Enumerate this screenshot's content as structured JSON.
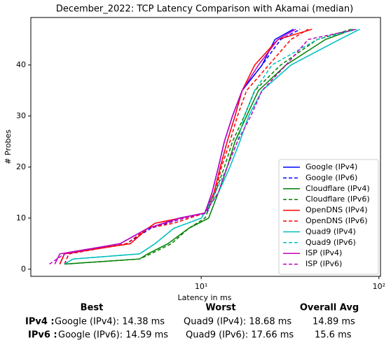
{
  "chart_data": {
    "type": "line",
    "title": "December_2022: TCP Latency Comparison with Akamai (median)",
    "xlabel": "Latency in ms",
    "ylabel": "# Probes",
    "xscale": "log",
    "xlim": [
      1.1,
      102
    ],
    "xticks": [
      {
        "value": 10,
        "label": "10¹"
      },
      {
        "value": 100,
        "label": "10²"
      }
    ],
    "ylim": [
      -1.4,
      49.3
    ],
    "yticks": [
      0,
      10,
      20,
      30,
      40
    ],
    "legend": "lower right",
    "series": [
      {
        "name": "Google (IPv4)",
        "color": "#0000ff",
        "dashed": false,
        "x": [
          1.6,
          1.7,
          3.5,
          5,
          7.5,
          10.5,
          11.5,
          12.5,
          13.5,
          15,
          17,
          22,
          26,
          33
        ],
        "values": [
          1,
          3,
          5,
          8,
          10,
          11,
          15,
          20,
          25,
          30,
          35,
          40,
          45,
          47
        ]
      },
      {
        "name": "Google (IPv6)",
        "color": "#0000ff",
        "dashed": true,
        "x": [
          1.7,
          1.8,
          3.8,
          5.2,
          8,
          10.8,
          11.8,
          12.8,
          14,
          15.5,
          17,
          22,
          28,
          36
        ],
        "values": [
          1,
          3,
          5,
          8,
          10,
          11,
          15,
          20,
          25,
          30,
          35,
          40,
          45,
          47
        ]
      },
      {
        "name": "Cloudflare (IPv4)",
        "color": "#008000",
        "dashed": false,
        "x": [
          1.7,
          4.5,
          5,
          6.5,
          8.5,
          11,
          12.5,
          14,
          15.5,
          18,
          21,
          30,
          50,
          72
        ],
        "values": [
          1,
          2,
          3,
          5,
          8,
          10,
          15,
          20,
          25,
          30,
          35,
          40,
          45,
          47
        ]
      },
      {
        "name": "Cloudflare (IPv6)",
        "color": "#008000",
        "dashed": true,
        "x": [
          1.7,
          4.5,
          5.2,
          6.8,
          8.5,
          10.5,
          12,
          13.5,
          15,
          17.5,
          20,
          28,
          45,
          70
        ],
        "values": [
          1,
          2,
          3,
          5,
          8,
          10,
          15,
          20,
          25,
          30,
          35,
          40,
          45,
          47
        ]
      },
      {
        "name": "OpenDNS (IPv4)",
        "color": "#ff0000",
        "dashed": false,
        "x": [
          1.6,
          1.7,
          4,
          5,
          5.5,
          10.5,
          11.8,
          12.8,
          14,
          15.5,
          17,
          20,
          27,
          42
        ],
        "values": [
          1,
          3,
          5,
          8,
          9,
          11,
          15,
          20,
          25,
          30,
          35,
          40,
          45,
          47
        ]
      },
      {
        "name": "OpenDNS (IPv6)",
        "color": "#ff0000",
        "dashed": true,
        "x": [
          1.7,
          1.8,
          3.8,
          5,
          7,
          10.5,
          12,
          13,
          14.5,
          16,
          18,
          24,
          32,
          40
        ],
        "values": [
          1,
          3,
          5,
          8,
          9,
          11,
          15,
          20,
          25,
          30,
          35,
          40,
          45,
          47
        ]
      },
      {
        "name": "Quad9 (IPv4)",
        "color": "#00bfbf",
        "dashed": false,
        "x": [
          1.7,
          1.9,
          4.5,
          5.5,
          7,
          10,
          12.5,
          14.5,
          16.5,
          18.5,
          22,
          32,
          60,
          78
        ],
        "values": [
          1,
          2,
          3,
          5,
          8,
          10,
          15,
          20,
          25,
          30,
          35,
          40,
          45,
          47
        ]
      },
      {
        "name": "Quad9 (IPv6)",
        "color": "#00bfbf",
        "dashed": true,
        "x": [
          1.7,
          1.9,
          4.5,
          5.5,
          7,
          10,
          12,
          14,
          16,
          17.5,
          20,
          25,
          45,
          75
        ],
        "values": [
          1,
          2,
          3,
          5,
          8,
          10,
          15,
          20,
          25,
          30,
          35,
          40,
          45,
          47
        ]
      },
      {
        "name": "ISP (IPv4)",
        "color": "#bf00bf",
        "dashed": false,
        "x": [
          1.5,
          1.6,
          3.5,
          5,
          7.5,
          10.5,
          11.5,
          12.5,
          13.5,
          15,
          17,
          21,
          27,
          34
        ],
        "values": [
          1,
          3,
          5,
          8,
          10,
          11,
          15,
          20,
          25,
          30,
          35,
          40,
          45,
          47
        ]
      },
      {
        "name": "ISP (IPv6)",
        "color": "#bf00bf",
        "dashed": true,
        "x": [
          1.4,
          1.7,
          3.5,
          5,
          8,
          10.5,
          12.5,
          14,
          16,
          19,
          22,
          30,
          40,
          75
        ],
        "values": [
          1,
          3,
          5,
          8,
          10,
          11,
          15,
          20,
          25,
          30,
          35,
          40,
          45,
          47
        ]
      }
    ]
  },
  "summary": {
    "headers": [
      "Best",
      "Worst",
      "Overall Avg"
    ],
    "rows": [
      [
        "IPv4 :",
        "Google (IPv4): 14.38 ms",
        "Quad9 (IPv4): 18.68 ms",
        "14.89 ms"
      ],
      [
        "IPv6 :",
        "Google (IPv6): 14.59 ms",
        "Quad9 (IPv6): 17.66 ms",
        "15.6 ms"
      ]
    ]
  }
}
